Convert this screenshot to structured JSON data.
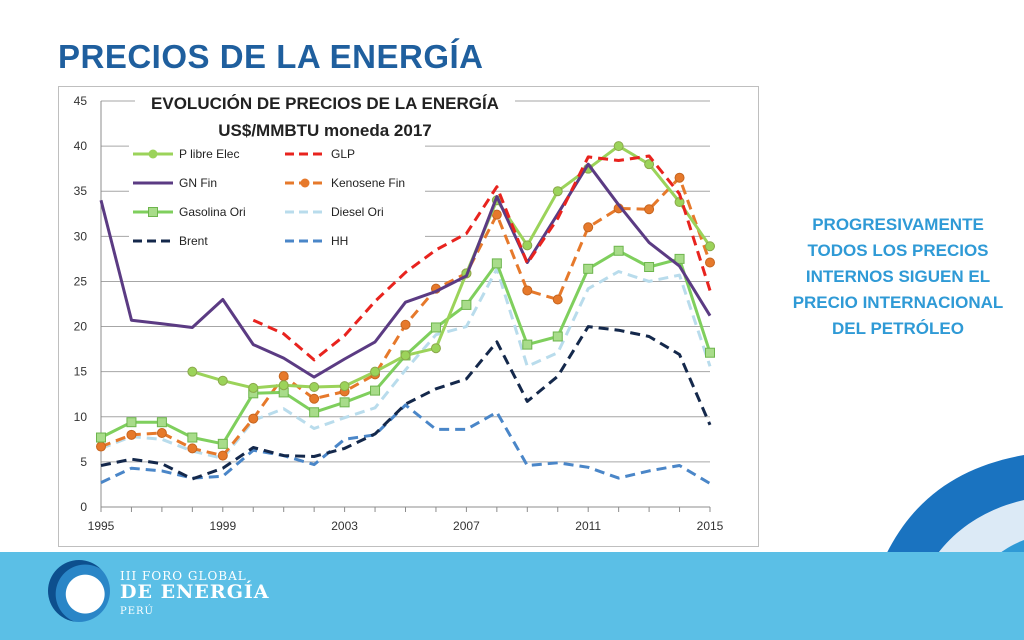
{
  "slide": {
    "title": "PRECIOS DE LA ENERGÍA",
    "side_note": "PROGRESIVAMENTE TODOS LOS PRECIOS INTERNOS SIGUEN EL PRECIO INTERNACIONAL DEL PETRÓLEO"
  },
  "logo": {
    "line1": "III FORO GLOBAL",
    "line2": "DE ENERGÍA",
    "line3": "PERÚ"
  },
  "colors": {
    "title": "#1f5f9e",
    "note": "#2f9ad6",
    "footer": "#5bbfe6"
  },
  "chart_data": {
    "type": "line",
    "title": "EVOLUCIÓN DE PRECIOS DE LA ENERGÍA",
    "subtitle": "US$/MMBTU moneda 2017",
    "xlabel": "",
    "ylabel": "",
    "xlim": [
      1995,
      2015
    ],
    "ylim": [
      0,
      45
    ],
    "x_ticks": [
      "1995",
      "1999",
      "2003",
      "2007",
      "2011",
      "2015"
    ],
    "y_ticks": [
      "0",
      "5",
      "10",
      "15",
      "20",
      "25",
      "30",
      "35",
      "40",
      "45"
    ],
    "grid": "horizontal",
    "legend_position": "top-left",
    "series": [
      {
        "name": "P libre Elec",
        "color": "#9bd35a",
        "dash": "solid",
        "marker": "circle",
        "x": [
          1998,
          1999,
          2000,
          2001,
          2002,
          2003,
          2004,
          2005,
          2006,
          2007,
          2008,
          2009,
          2010,
          2011,
          2012,
          2013,
          2014,
          2015
        ],
        "values": [
          15,
          14,
          13.2,
          13.5,
          13.3,
          13.4,
          15,
          16.8,
          17.6,
          25.9,
          34,
          29,
          35,
          37.5,
          40,
          38,
          33.8,
          28.9
        ]
      },
      {
        "name": "GLP",
        "color": "#e8231e",
        "dash": "dash",
        "marker": "none",
        "x": [
          2000,
          2001,
          2002,
          2003,
          2004,
          2005,
          2006,
          2007,
          2008,
          2009,
          2010,
          2011,
          2012,
          2013,
          2014,
          2015
        ],
        "values": [
          20.7,
          19.2,
          16.3,
          19,
          22.8,
          26,
          28.5,
          30.3,
          35.5,
          27,
          32,
          38.8,
          38.4,
          38.9,
          34.7,
          24
        ]
      },
      {
        "name": "GN Fin",
        "color": "#5b3b83",
        "dash": "solid",
        "marker": "none",
        "x": [
          1995,
          1996,
          1997,
          1998,
          1999,
          2000,
          2001,
          2002,
          2003,
          2004,
          2005,
          2006,
          2007,
          2008,
          2009,
          2010,
          2011,
          2012,
          2013,
          2014,
          2015
        ],
        "values": [
          34,
          20.7,
          20.3,
          19.9,
          23,
          18,
          16.5,
          14.4,
          16.4,
          18.3,
          22.7,
          23.9,
          25.6,
          34.4,
          27.1,
          32.5,
          38,
          33.5,
          29.3,
          26.7,
          21.2
        ]
      },
      {
        "name": "Kenosene Fin",
        "color": "#e6792b",
        "dash": "dash",
        "marker": "circle",
        "x": [
          1995,
          1996,
          1997,
          1998,
          1999,
          2000,
          2001,
          2002,
          2003,
          2004,
          2005,
          2006,
          2007,
          2008,
          2009,
          2010,
          2011,
          2012,
          2013,
          2014,
          2015
        ],
        "values": [
          6.7,
          8,
          8.2,
          6.5,
          5.7,
          9.8,
          14.5,
          12,
          12.8,
          14.7,
          20.2,
          24.2,
          25.9,
          32.4,
          24,
          23,
          31,
          33.1,
          33,
          36.5,
          27.1
        ]
      },
      {
        "name": "Gasolina Ori",
        "color": "#7fcf5d",
        "dash": "solid",
        "marker": "square",
        "x": [
          1995,
          1996,
          1997,
          1998,
          1999,
          2000,
          2001,
          2002,
          2003,
          2004,
          2005,
          2006,
          2007,
          2008,
          2009,
          2010,
          2011,
          2012,
          2013,
          2014,
          2015
        ],
        "values": [
          7.7,
          9.4,
          9.4,
          7.7,
          7,
          12.6,
          12.7,
          10.5,
          11.6,
          12.9,
          16.8,
          19.9,
          22.4,
          27,
          18,
          18.9,
          26.4,
          28.4,
          26.6,
          27.5,
          17.1
        ]
      },
      {
        "name": "Diesel Ori",
        "color": "#b9dcec",
        "dash": "dash",
        "marker": "none",
        "x": [
          1995,
          1996,
          1997,
          1998,
          1999,
          2000,
          2001,
          2002,
          2003,
          2004,
          2005,
          2006,
          2007,
          2008,
          2009,
          2010,
          2011,
          2012,
          2013,
          2014,
          2015
        ],
        "values": [
          6.5,
          7.8,
          7.5,
          6.2,
          5.4,
          9.6,
          10.9,
          8.7,
          9.9,
          11,
          15.2,
          19.1,
          20,
          26.4,
          15.6,
          17.1,
          24.2,
          26.1,
          25,
          25.7,
          15.6
        ]
      },
      {
        "name": "Brent",
        "color": "#14284b",
        "dash": "dash",
        "marker": "none",
        "x": [
          1995,
          1996,
          1997,
          1998,
          1999,
          2000,
          2001,
          2002,
          2003,
          2004,
          2005,
          2006,
          2007,
          2008,
          2009,
          2010,
          2011,
          2012,
          2013,
          2014,
          2015
        ],
        "values": [
          4.6,
          5.3,
          4.8,
          3.1,
          4.3,
          6.6,
          5.7,
          5.6,
          6.5,
          8.1,
          11.4,
          13.1,
          14.2,
          18.3,
          11.7,
          14.5,
          20,
          19.6,
          18.9,
          16.9,
          9.1
        ]
      },
      {
        "name": "HH",
        "color": "#4a86c8",
        "dash": "dash",
        "marker": "none",
        "x": [
          1995,
          1996,
          1997,
          1998,
          1999,
          2000,
          2001,
          2002,
          2003,
          2004,
          2005,
          2006,
          2007,
          2008,
          2009,
          2010,
          2011,
          2012,
          2013,
          2014,
          2015
        ],
        "values": [
          2.7,
          4.3,
          4,
          3.2,
          3.4,
          6.3,
          5.7,
          4.7,
          7.5,
          8,
          11.3,
          8.6,
          8.6,
          10.5,
          4.6,
          4.9,
          4.4,
          3.2,
          4,
          4.6,
          2.6
        ]
      }
    ]
  }
}
